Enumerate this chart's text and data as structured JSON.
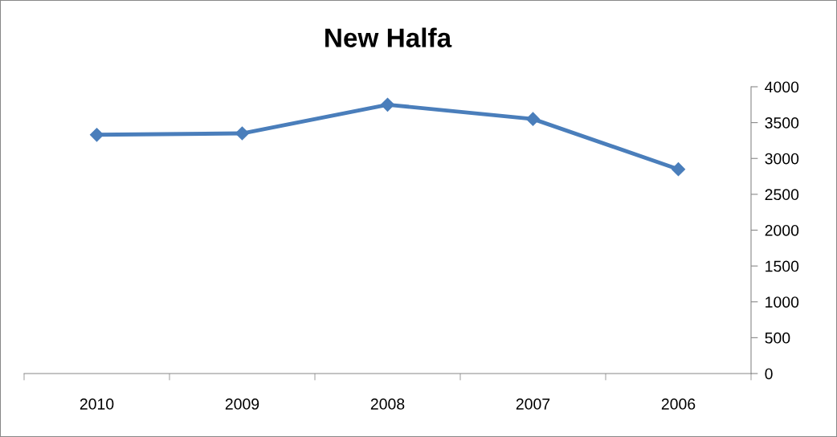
{
  "chart_data": {
    "type": "line",
    "title": "New Halfa",
    "categories": [
      "2010",
      "2009",
      "2008",
      "2007",
      "2006"
    ],
    "series": [
      {
        "color": "#4a7ebb",
        "values": [
          3330,
          3350,
          3750,
          3550,
          2850
        ]
      }
    ],
    "ylim": [
      0,
      4000
    ],
    "yticks": [
      0,
      500,
      1000,
      1500,
      2000,
      2500,
      3000,
      3500,
      4000
    ],
    "grid": false,
    "legend": false,
    "marker": "diamond",
    "line_style": "solid"
  }
}
